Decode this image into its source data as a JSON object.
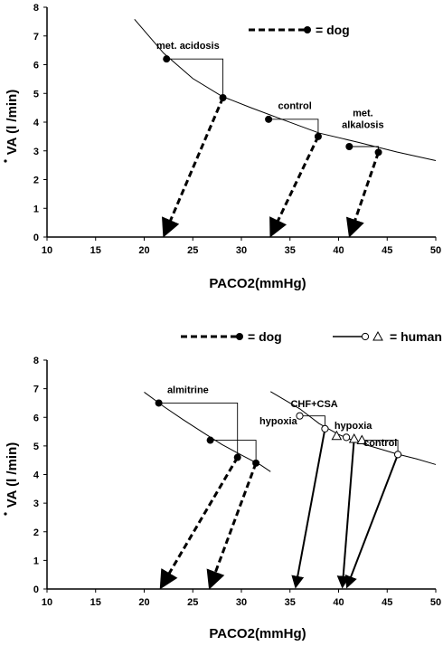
{
  "chart_data": [
    {
      "type": "line",
      "xlabel": "PACO2(mmHg)",
      "ylabel": "VA (l /min)",
      "xlim": [
        10,
        50
      ],
      "ylim": [
        0,
        8
      ],
      "xticks": [
        10,
        15,
        20,
        25,
        30,
        35,
        40,
        45,
        50
      ],
      "yticks": [
        0,
        1,
        2,
        3,
        4,
        5,
        6,
        7,
        8
      ],
      "legend": [
        {
          "label": "= dog",
          "style": "dashed-filled-dot"
        }
      ],
      "curves": [
        {
          "x": [
            19,
            22,
            25,
            28,
            31,
            34,
            38,
            42,
            46,
            50
          ],
          "y": [
            7.58,
            6.4,
            5.52,
            4.9,
            4.5,
            4.12,
            3.62,
            3.3,
            2.96,
            2.66
          ]
        }
      ],
      "points": [
        {
          "x": 22.3,
          "y": 6.2,
          "fill": "filled"
        },
        {
          "x": 28.1,
          "y": 4.85,
          "fill": "filled"
        },
        {
          "x": 32.8,
          "y": 4.1,
          "fill": "filled"
        },
        {
          "x": 37.9,
          "y": 3.5,
          "fill": "filled"
        },
        {
          "x": 41.1,
          "y": 3.15,
          "fill": "filled"
        },
        {
          "x": 44.1,
          "y": 2.95,
          "fill": "filled"
        }
      ],
      "arrows": [
        {
          "from": [
            28.1,
            4.85
          ],
          "to": [
            22.1,
            0.1
          ],
          "style": "dashed"
        },
        {
          "from": [
            37.9,
            3.5
          ],
          "to": [
            33.1,
            0.1
          ],
          "style": "dashed"
        },
        {
          "from": [
            44.1,
            2.95
          ],
          "to": [
            41.2,
            0.1
          ],
          "style": "dashed"
        }
      ],
      "annotations": [
        {
          "lines": [
            "met. acidosis"
          ],
          "x": 24.5,
          "y": 6.55
        },
        {
          "lines": [
            "control"
          ],
          "x": 35.5,
          "y": 4.45
        },
        {
          "lines": [
            "met.",
            "alkalosis"
          ],
          "x": 42.5,
          "y": 4.2
        }
      ],
      "brackets": [
        {
          "from": [
            22.3,
            6.2
          ],
          "corner": [
            28.1,
            6.2
          ],
          "to": [
            28.1,
            4.85
          ]
        },
        {
          "from": [
            32.8,
            4.1
          ],
          "corner": [
            37.9,
            4.1
          ],
          "to": [
            37.9,
            3.5
          ]
        },
        {
          "from": [
            41.1,
            3.15
          ],
          "corner": [
            44.1,
            3.15
          ],
          "to": [
            44.1,
            2.95
          ]
        }
      ]
    },
    {
      "type": "line",
      "xlabel": "PACO2(mmHg)",
      "ylabel": "VA (l /min)",
      "xlim": [
        10,
        50
      ],
      "ylim": [
        0,
        8
      ],
      "xticks": [
        10,
        15,
        20,
        25,
        30,
        35,
        40,
        45,
        50
      ],
      "yticks": [
        0,
        1,
        2,
        3,
        4,
        5,
        6,
        7,
        8
      ],
      "legend": [
        {
          "label": "= dog",
          "style": "dashed-filled-dot"
        },
        {
          "label": "= human",
          "style": "solid-open-circle-triangle"
        }
      ],
      "curves": [
        {
          "x": [
            20,
            22,
            24,
            26,
            28,
            30,
            32,
            33
          ],
          "y": [
            6.88,
            6.38,
            5.92,
            5.48,
            5.05,
            4.68,
            4.33,
            4.1
          ]
        },
        {
          "x": [
            33,
            36,
            38,
            40,
            42,
            44,
            46,
            48,
            50
          ],
          "y": [
            6.9,
            6.3,
            5.78,
            5.4,
            5.12,
            4.92,
            4.72,
            4.55,
            4.35
          ]
        }
      ],
      "points": [
        {
          "x": 21.5,
          "y": 6.5,
          "fill": "filled"
        },
        {
          "x": 26.8,
          "y": 5.2,
          "fill": "filled"
        },
        {
          "x": 29.6,
          "y": 4.6,
          "fill": "filled"
        },
        {
          "x": 31.5,
          "y": 4.4,
          "fill": "filled"
        },
        {
          "x": 36,
          "y": 6.05,
          "fill": "open"
        },
        {
          "x": 38.6,
          "y": 5.6,
          "fill": "open"
        },
        {
          "x": 39.8,
          "y": 5.35,
          "fill": "open-triangle"
        },
        {
          "x": 40.8,
          "y": 5.3,
          "fill": "open"
        },
        {
          "x": 41.6,
          "y": 5.25,
          "fill": "open-triangle"
        },
        {
          "x": 42.4,
          "y": 5.2,
          "fill": "open-triangle"
        },
        {
          "x": 46.1,
          "y": 4.7,
          "fill": "open"
        }
      ],
      "arrows": [
        {
          "from": [
            29.6,
            4.6
          ],
          "to": [
            21.8,
            0.1
          ],
          "style": "dashed"
        },
        {
          "from": [
            31.5,
            4.4
          ],
          "to": [
            26.8,
            0.1
          ],
          "style": "dashed"
        },
        {
          "from": [
            38.6,
            5.6
          ],
          "to": [
            35.6,
            0.1
          ],
          "style": "solid"
        },
        {
          "from": [
            41.6,
            5.25
          ],
          "to": [
            40.4,
            0.1
          ],
          "style": "solid"
        },
        {
          "from": [
            46.1,
            4.7
          ],
          "to": [
            40.9,
            0.1
          ],
          "style": "solid"
        }
      ],
      "annotations": [
        {
          "lines": [
            "almitrine"
          ],
          "x": 24.5,
          "y": 6.85
        },
        {
          "lines": [
            "hypoxia"
          ],
          "x": 33.8,
          "y": 5.75
        },
        {
          "lines": [
            "CHF+CSA"
          ],
          "x": 37.5,
          "y": 6.35
        },
        {
          "lines": [
            "hypoxia"
          ],
          "x": 41.5,
          "y": 5.6
        },
        {
          "lines": [
            "control"
          ],
          "x": 44.3,
          "y": 5.0
        }
      ],
      "brackets": [
        {
          "from": [
            21.5,
            6.5
          ],
          "corner": [
            29.6,
            6.5
          ],
          "to": [
            29.6,
            4.6
          ]
        },
        {
          "from": [
            26.8,
            5.2
          ],
          "corner": [
            31.5,
            5.2
          ],
          "to": [
            31.5,
            4.4
          ]
        },
        {
          "from": [
            36,
            6.05
          ],
          "corner": [
            38.6,
            6.05
          ],
          "to": [
            38.6,
            5.6
          ]
        },
        {
          "from": [
            42.4,
            5.2
          ],
          "corner": [
            46.1,
            5.2
          ],
          "to": [
            46.1,
            4.7
          ]
        }
      ]
    }
  ]
}
